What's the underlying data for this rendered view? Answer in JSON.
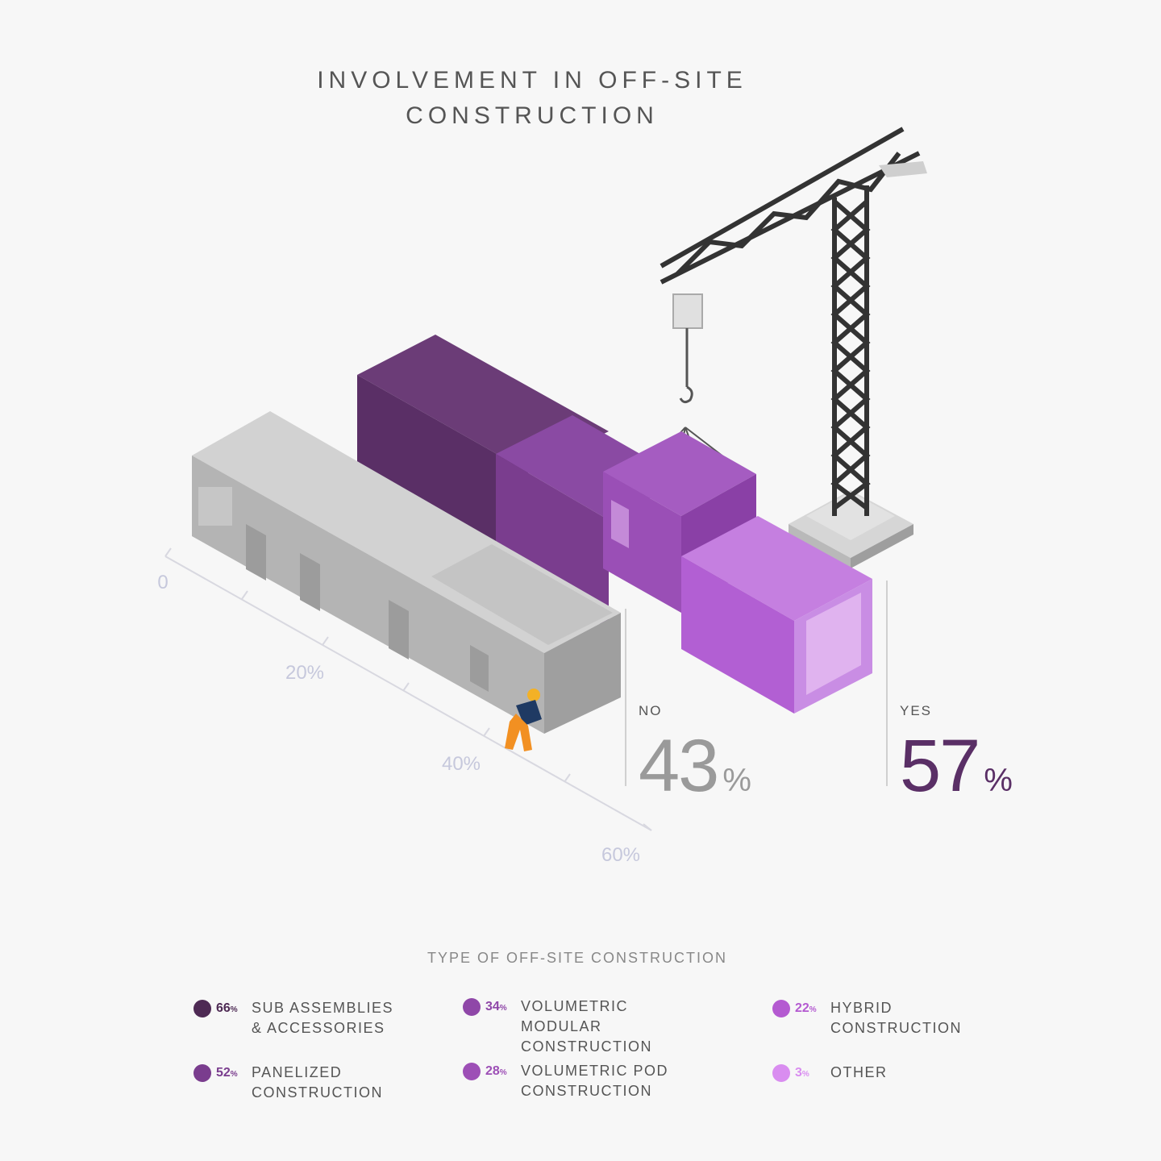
{
  "title_line1": "INVOLVEMENT IN OFF-SITE",
  "title_line2": "CONSTRUCTION",
  "axis_ticks": [
    "0",
    "20%",
    "40%",
    "60%"
  ],
  "no": {
    "label": "NO",
    "value": "43",
    "unit": "%"
  },
  "yes": {
    "label": "YES",
    "value": "57",
    "unit": "%"
  },
  "legend_title": "TYPE OF OFF-SITE CONSTRUCTION",
  "legend": [
    {
      "value": "66",
      "unit": "%",
      "line1": "SUB ASSEMBLIES",
      "line2": "& ACCESSORIES",
      "color": "#4e2a54"
    },
    {
      "value": "52",
      "unit": "%",
      "line1": "PANELIZED",
      "line2": "CONSTRUCTION",
      "color": "#7a3d8e"
    },
    {
      "value": "34",
      "unit": "%",
      "line1": "VOLUMETRIC MODULAR",
      "line2": "CONSTRUCTION",
      "color": "#8f47a8"
    },
    {
      "value": "28",
      "unit": "%",
      "line1": "VOLUMETRIC POD",
      "line2": "CONSTRUCTION",
      "color": "#9d4fb6"
    },
    {
      "value": "22",
      "unit": "%",
      "line1": "HYBRID",
      "line2": "CONSTRUCTION",
      "color": "#b45ad1"
    },
    {
      "value": "3",
      "unit": "%",
      "line1": "OTHER",
      "line2": "",
      "color": "#d98df0"
    }
  ],
  "chart_data": {
    "type": "bar",
    "title": "INVOLVEMENT IN OFF-SITE CONSTRUCTION",
    "categories": [
      "NO",
      "YES"
    ],
    "values": [
      43,
      57
    ],
    "unit": "%",
    "axis_ticks": [
      "0",
      "20%",
      "40%",
      "60%"
    ],
    "ylim": [
      0,
      60
    ],
    "grid": false,
    "colors": {
      "no": "#a9a9a9",
      "yes": "#5a2f66"
    },
    "breakdown": {
      "title": "TYPE OF OFF-SITE CONSTRUCTION",
      "categories": [
        "SUB ASSEMBLIES & ACCESSORIES",
        "PANELIZED CONSTRUCTION",
        "VOLUMETRIC MODULAR CONSTRUCTION",
        "VOLUMETRIC POD CONSTRUCTION",
        "HYBRID CONSTRUCTION",
        "OTHER"
      ],
      "values": [
        66,
        52,
        34,
        28,
        22,
        3
      ],
      "unit": "%"
    }
  }
}
